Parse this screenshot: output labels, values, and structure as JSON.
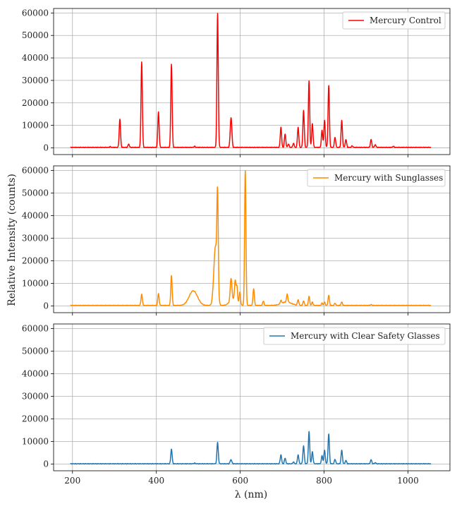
{
  "figure": {
    "ylabel": "Relative Intensity (counts)",
    "xlabel": "λ (nm)"
  },
  "chart_data": [
    {
      "type": "line",
      "series": [
        {
          "name": "Mercury Control",
          "color": "#ff0000"
        }
      ],
      "legend": "top-right",
      "xlim": [
        155,
        1100
      ],
      "ylim": [
        -3000,
        62000
      ],
      "xticks": [
        200,
        400,
        600,
        800,
        1000
      ],
      "yticks": [
        0,
        10000,
        20000,
        30000,
        40000,
        50000,
        60000
      ],
      "grid": true,
      "peaks": [
        [
          290,
          300
        ],
        [
          313,
          12500
        ],
        [
          334,
          1500
        ],
        [
          365,
          38000
        ],
        [
          405,
          15800
        ],
        [
          436,
          37000
        ],
        [
          491,
          500
        ],
        [
          546,
          59600
        ],
        [
          577,
          7500
        ],
        [
          579,
          8500
        ],
        [
          697,
          9000
        ],
        [
          707,
          6000
        ],
        [
          715,
          1500
        ],
        [
          727,
          1800
        ],
        [
          738,
          9000
        ],
        [
          751,
          16500
        ],
        [
          764,
          29500
        ],
        [
          772,
          10500
        ],
        [
          795,
          7500
        ],
        [
          801,
          12000
        ],
        [
          811,
          27500
        ],
        [
          826,
          4500
        ],
        [
          842,
          12000
        ],
        [
          852,
          3500
        ],
        [
          867,
          700
        ],
        [
          912,
          3500
        ],
        [
          922,
          1200
        ],
        [
          965,
          500
        ]
      ],
      "baseline": 200
    },
    {
      "type": "line",
      "series": [
        {
          "name": "Mercury with Sunglasses",
          "color": "#ff8c00"
        }
      ],
      "legend": "top-right",
      "xlim": [
        155,
        1100
      ],
      "ylim": [
        -3000,
        62000
      ],
      "xticks": [
        200,
        400,
        600,
        800,
        1000
      ],
      "yticks": [
        0,
        10000,
        20000,
        30000,
        40000,
        50000,
        60000
      ],
      "grid": true,
      "peaks": [
        [
          365,
          5000
        ],
        [
          405,
          5300
        ],
        [
          436,
          13200
        ],
        [
          546,
          40500
        ],
        [
          577,
          5500
        ],
        [
          579,
          6000
        ],
        [
          588,
          8500
        ],
        [
          592,
          7000
        ],
        [
          599,
          5500
        ],
        [
          612,
          59600
        ],
        [
          632,
          7500
        ],
        [
          655,
          2000
        ],
        [
          697,
          1500
        ],
        [
          712,
          3500
        ],
        [
          738,
          2500
        ],
        [
          751,
          2000
        ],
        [
          764,
          4000
        ],
        [
          772,
          1500
        ],
        [
          795,
          1000
        ],
        [
          801,
          1500
        ],
        [
          811,
          4500
        ],
        [
          826,
          1000
        ],
        [
          842,
          1500
        ],
        [
          912,
          400
        ]
      ],
      "broad": [
        [
          488,
          6500,
          10
        ],
        [
          541,
          26000,
          4
        ],
        [
          583,
          3000,
          8
        ],
        [
          710,
          1500,
          12
        ]
      ],
      "baseline": 200
    },
    {
      "type": "line",
      "series": [
        {
          "name": "Mercury with Clear Safety Glasses",
          "color": "#1f77b4"
        }
      ],
      "legend": "top-right",
      "xlim": [
        155,
        1100
      ],
      "ylim": [
        -3000,
        62000
      ],
      "xticks": [
        200,
        400,
        600,
        800,
        1000
      ],
      "yticks": [
        0,
        10000,
        20000,
        30000,
        40000,
        50000,
        60000
      ],
      "grid": true,
      "peaks": [
        [
          436,
          6500
        ],
        [
          491,
          300
        ],
        [
          546,
          9500
        ],
        [
          577,
          1200
        ],
        [
          579,
          1000
        ],
        [
          697,
          4000
        ],
        [
          707,
          2500
        ],
        [
          727,
          800
        ],
        [
          738,
          4000
        ],
        [
          751,
          8000
        ],
        [
          764,
          14200
        ],
        [
          772,
          5300
        ],
        [
          795,
          3500
        ],
        [
          801,
          6000
        ],
        [
          811,
          13200
        ],
        [
          826,
          2000
        ],
        [
          842,
          6000
        ],
        [
          852,
          1500
        ],
        [
          912,
          1800
        ],
        [
          922,
          500
        ]
      ],
      "baseline": 100
    }
  ]
}
